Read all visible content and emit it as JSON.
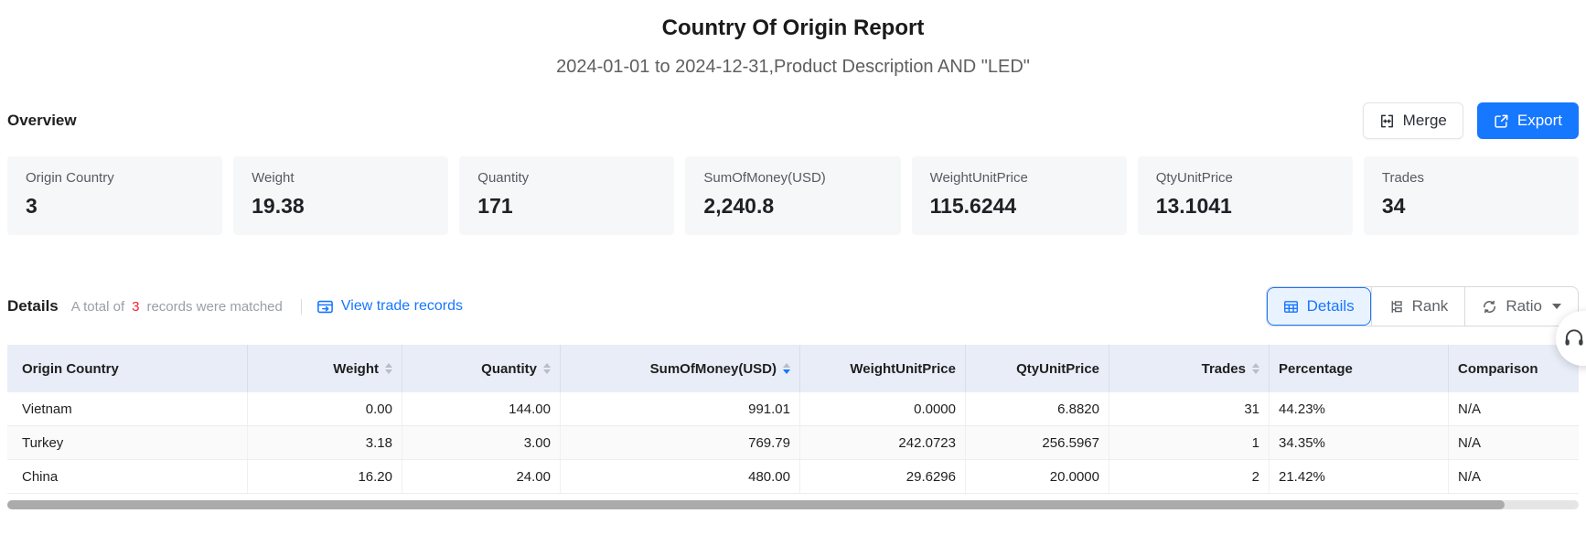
{
  "colors": {
    "accent_blue": "#1677ff",
    "count_red": "#f5222d",
    "table_header_bg": "#e8edf8"
  },
  "report": {
    "title": "Country Of Origin Report",
    "subtitle": "2024-01-01 to 2024-12-31,Product Description AND \"LED\""
  },
  "overview": {
    "heading": "Overview",
    "merge_label": "Merge",
    "export_label": "Export",
    "cards": [
      {
        "label": "Origin Country",
        "value": "3"
      },
      {
        "label": "Weight",
        "value": "19.38"
      },
      {
        "label": "Quantity",
        "value": "171"
      },
      {
        "label": "SumOfMoney(USD)",
        "value": "2,240.8"
      },
      {
        "label": "WeightUnitPrice",
        "value": "115.6244"
      },
      {
        "label": "QtyUnitPrice",
        "value": "13.1041"
      },
      {
        "label": "Trades",
        "value": "34"
      }
    ]
  },
  "details": {
    "heading": "Details",
    "summary_prefix": "A total of",
    "matched_count": "3",
    "summary_suffix": "records were matched",
    "view_trade_records_label": "View trade records",
    "view_modes": {
      "details": "Details",
      "rank": "Rank",
      "ratio": "Ratio"
    }
  },
  "table": {
    "columns": [
      {
        "label": "Origin Country",
        "sortable": false
      },
      {
        "label": "Weight",
        "sortable": true
      },
      {
        "label": "Quantity",
        "sortable": true
      },
      {
        "label": "SumOfMoney(USD)",
        "sortable": true,
        "sort": "desc"
      },
      {
        "label": "WeightUnitPrice",
        "sortable": false
      },
      {
        "label": "QtyUnitPrice",
        "sortable": false
      },
      {
        "label": "Trades",
        "sortable": true
      },
      {
        "label": "Percentage",
        "sortable": false
      },
      {
        "label": "Comparison",
        "sortable": false
      }
    ],
    "rows": [
      [
        "Vietnam",
        "0.00",
        "144.00",
        "991.01",
        "0.0000",
        "6.8820",
        "31",
        "44.23%",
        "N/A"
      ],
      [
        "Turkey",
        "3.18",
        "3.00",
        "769.79",
        "242.0723",
        "256.5967",
        "1",
        "34.35%",
        "N/A"
      ],
      [
        "China",
        "16.20",
        "24.00",
        "480.00",
        "29.6296",
        "20.0000",
        "2",
        "21.42%",
        "N/A"
      ]
    ]
  }
}
